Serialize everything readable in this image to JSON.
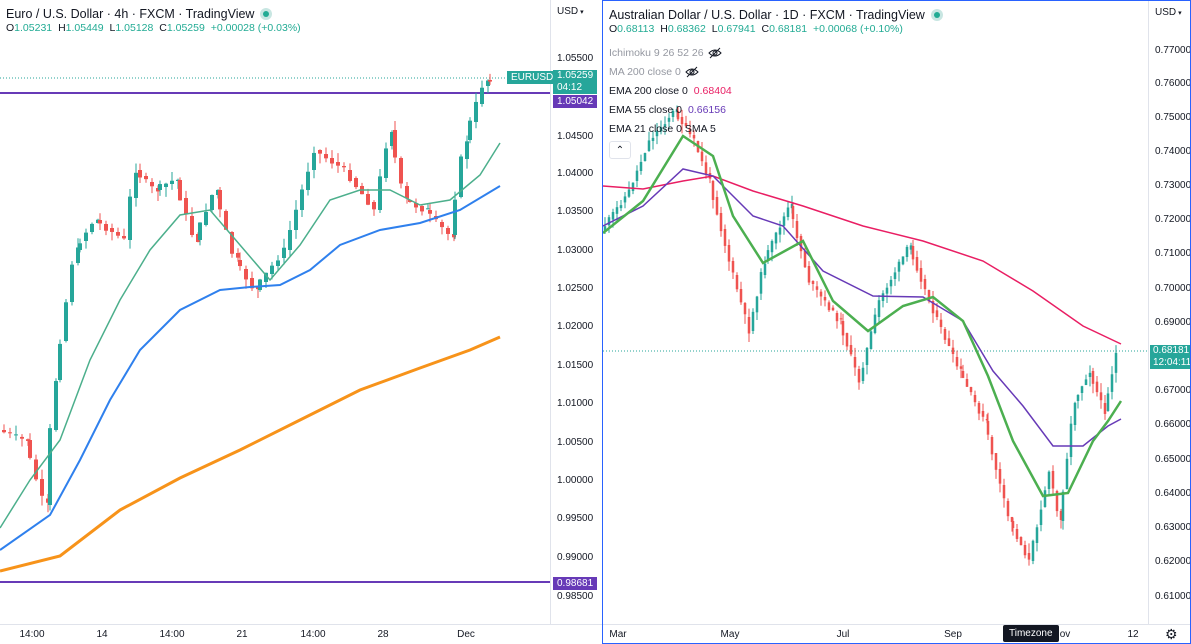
{
  "left_chart": {
    "title": "Euro / U.S. Dollar · 4h · FXCM · TradingView",
    "ohlc": [
      {
        "k": "O",
        "v": "1.05231"
      },
      {
        "k": "H",
        "v": "1.05449"
      },
      {
        "k": "L",
        "v": "1.05128"
      },
      {
        "k": "C",
        "v": "1.05259"
      }
    ],
    "change": "+0.00028 (+0.03%)",
    "currency": "USD",
    "price_ticks": [
      "1.05500",
      "1.04500",
      "1.04000",
      "1.03500",
      "1.03000",
      "1.02500",
      "1.02000",
      "1.01500",
      "1.01000",
      "1.00500",
      "1.00000",
      "0.99500",
      "0.99000",
      "0.98500"
    ],
    "symbol_tag": "EURUSD",
    "last_price": "1.05259",
    "countdown": "04:12",
    "hline_upper": "1.05042",
    "hline_lower": "0.98681",
    "time_ticks": [
      "14:00",
      "14",
      "14:00",
      "21",
      "14:00",
      "28",
      "Dec"
    ],
    "colors": {
      "up": "#26a69a",
      "down": "#ef5350",
      "ema_fast": "#4caf8c",
      "ema_mid": "#2f80ed",
      "ema_slow": "#f7931a",
      "hline": "#673ab7"
    }
  },
  "right_chart": {
    "title": "Australian Dollar / U.S. Dollar · 1D · FXCM · TradingView",
    "ohlc": [
      {
        "k": "O",
        "v": "0.68113"
      },
      {
        "k": "H",
        "v": "0.68362"
      },
      {
        "k": "L",
        "v": "0.67941"
      },
      {
        "k": "C",
        "v": "0.68181"
      }
    ],
    "change": "+0.00068 (+0.10%)",
    "currency": "USD",
    "indicators": [
      {
        "name": "Ichimoku 9 26 52 26",
        "value": "",
        "hidden": true,
        "color": "#9598a1"
      },
      {
        "name": "MA 200 close 0",
        "value": "",
        "hidden": true,
        "color": "#9598a1"
      },
      {
        "name": "EMA 200 close 0",
        "value": "0.68404",
        "hidden": false,
        "color": "#e91e63"
      },
      {
        "name": "EMA 55 close 0",
        "value": "0.66156",
        "hidden": false,
        "color": "#673ab7"
      },
      {
        "name": "EMA 21 close 0 SMA 5",
        "value": "",
        "hidden": false,
        "color": "#4caf50"
      }
    ],
    "price_ticks": [
      "0.77000",
      "0.76000",
      "0.75000",
      "0.74000",
      "0.73000",
      "0.72000",
      "0.71000",
      "0.70000",
      "0.69000",
      "0.67000",
      "0.66000",
      "0.65000",
      "0.64000",
      "0.63000",
      "0.62000",
      "0.61000"
    ],
    "last_price": "0.68181",
    "countdown": "12:04:11",
    "time_ticks": [
      "Mar",
      "May",
      "Jul",
      "Sep",
      "ov",
      "12"
    ],
    "timezone_label": "Timezone",
    "colors": {
      "up": "#26a69a",
      "down": "#ef5350",
      "ema200": "#e91e63",
      "ema55": "#673ab7",
      "ema21": "#4caf50"
    }
  }
}
